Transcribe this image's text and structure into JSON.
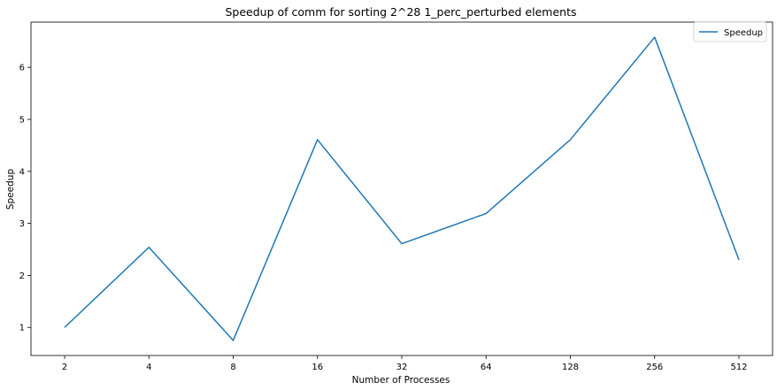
{
  "chart_data": {
    "type": "line",
    "title": "Speedup of comm for sorting 2^28 1_perc_perturbed elements",
    "xlabel": "Number of Processes",
    "ylabel": "Speedup",
    "categories": [
      "2",
      "4",
      "8",
      "16",
      "32",
      "64",
      "128",
      "256",
      "512"
    ],
    "series": [
      {
        "name": "Speedup",
        "color": "#1f77b4",
        "values": [
          1.0,
          2.54,
          0.75,
          4.61,
          2.61,
          3.19,
          4.61,
          6.58,
          2.3
        ]
      }
    ],
    "yticks": [
      1,
      2,
      3,
      4,
      5,
      6
    ],
    "ylim": [
      0.46,
      6.87
    ],
    "grid": false,
    "legend_position": "upper right"
  }
}
